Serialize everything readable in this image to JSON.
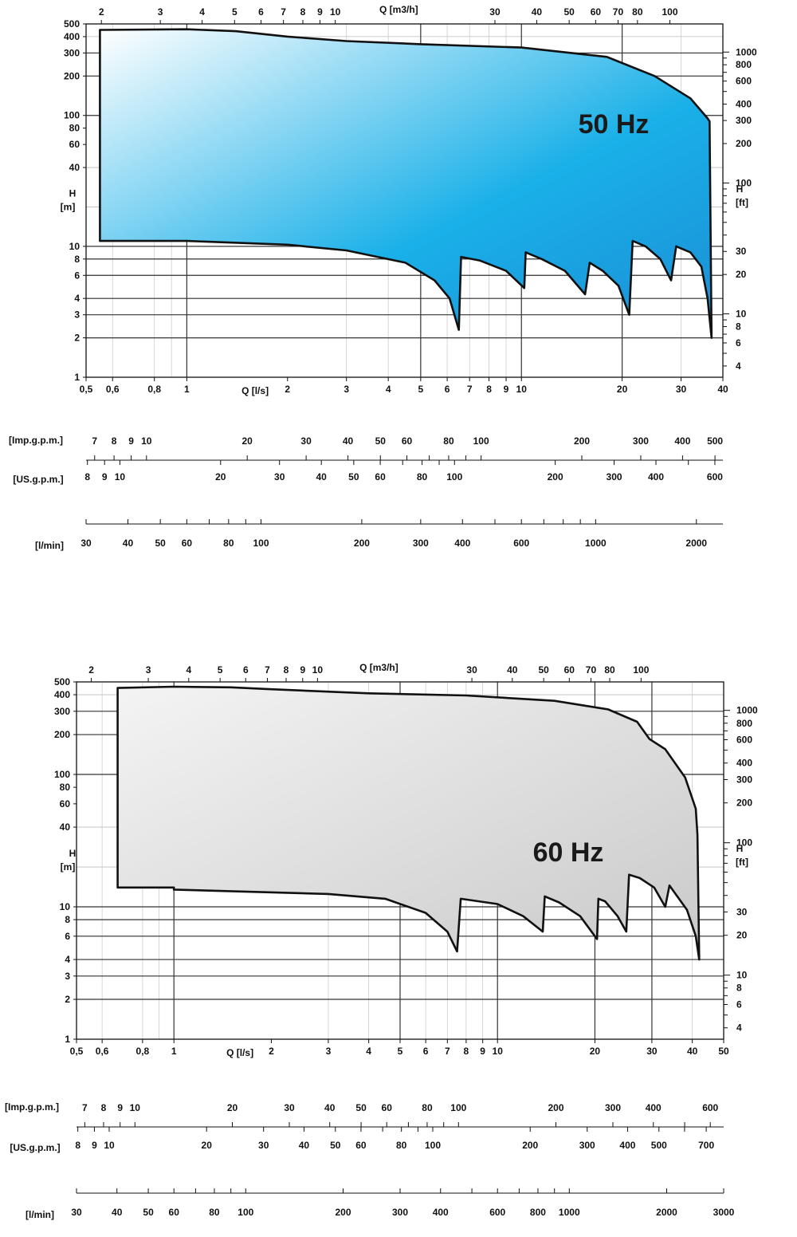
{
  "chart_data": [
    {
      "type": "area",
      "title": "",
      "label": "50 Hz",
      "fill_colors": [
        "#ffffff",
        "#1ab0e8",
        "#1a8ed6"
      ],
      "x_axis_bottom": {
        "label": "Q  [l/s]",
        "scale": "log",
        "range": [
          0.5,
          40
        ],
        "ticks": [
          "0,5",
          "0,6",
          "0,8",
          "1",
          "2",
          "3",
          "4",
          "5",
          "6",
          "7",
          "8",
          "9",
          "10",
          "20",
          "30",
          "40"
        ]
      },
      "x_axis_top": {
        "label": "Q [m3/h]",
        "scale": "log",
        "ticks": [
          "2",
          "3",
          "4",
          "5",
          "6",
          "7",
          "8",
          "9",
          "10",
          "30",
          "40",
          "50",
          "60",
          "70",
          "80",
          "100"
        ]
      },
      "y_axis_left": {
        "label": "H",
        "unit": "[m]",
        "scale": "log",
        "range": [
          1,
          500
        ],
        "ticks": [
          "1",
          "2",
          "3",
          "4",
          "6",
          "8",
          "10",
          "40",
          "60",
          "80",
          "100",
          "200",
          "300",
          "400",
          "500"
        ]
      },
      "y_axis_right": {
        "label": "H",
        "unit": "[ft]",
        "scale": "log",
        "ticks": [
          "4",
          "6",
          "8",
          "10",
          "20",
          "30",
          "100",
          "200",
          "300",
          "400",
          "600",
          "800",
          "1000"
        ]
      },
      "envelope": [
        {
          "q": 0.55,
          "h": 450
        },
        {
          "q": 1.0,
          "h": 455
        },
        {
          "q": 1.4,
          "h": 440
        },
        {
          "q": 2.0,
          "h": 400
        },
        {
          "q": 3.0,
          "h": 370
        },
        {
          "q": 5.0,
          "h": 350
        },
        {
          "q": 10.0,
          "h": 330
        },
        {
          "q": 18.0,
          "h": 280
        },
        {
          "q": 25.0,
          "h": 200
        },
        {
          "q": 32.0,
          "h": 135
        },
        {
          "q": 36.0,
          "h": 95
        },
        {
          "q": 36.5,
          "h": 90
        },
        {
          "q": 37.0,
          "h": 2.0
        },
        {
          "q": 36.0,
          "h": 4.0
        },
        {
          "q": 34.5,
          "h": 7.0
        },
        {
          "q": 32.0,
          "h": 9.0
        },
        {
          "q": 29.0,
          "h": 10.0
        },
        {
          "q": 28.0,
          "h": 5.5
        },
        {
          "q": 26.0,
          "h": 8.0
        },
        {
          "q": 23.5,
          "h": 10.0
        },
        {
          "q": 21.5,
          "h": 11.0
        },
        {
          "q": 21.0,
          "h": 3.0
        },
        {
          "q": 19.5,
          "h": 5.0
        },
        {
          "q": 17.5,
          "h": 6.5
        },
        {
          "q": 16.0,
          "h": 7.5
        },
        {
          "q": 15.5,
          "h": 4.3
        },
        {
          "q": 13.5,
          "h": 6.5
        },
        {
          "q": 11.5,
          "h": 8.0
        },
        {
          "q": 10.3,
          "h": 9.0
        },
        {
          "q": 10.2,
          "h": 4.8
        },
        {
          "q": 9.0,
          "h": 6.5
        },
        {
          "q": 7.5,
          "h": 7.8
        },
        {
          "q": 6.6,
          "h": 8.3
        },
        {
          "q": 6.5,
          "h": 2.3
        },
        {
          "q": 6.1,
          "h": 4.0
        },
        {
          "q": 5.5,
          "h": 5.5
        },
        {
          "q": 4.5,
          "h": 7.5
        },
        {
          "q": 3.0,
          "h": 9.3
        },
        {
          "q": 2.0,
          "h": 10.3
        },
        {
          "q": 1.0,
          "h": 11.0
        },
        {
          "q": 0.55,
          "h": 11.0
        }
      ]
    },
    {
      "type": "area",
      "title": "",
      "label": "60 Hz",
      "fill_colors": [
        "#f4f4f4",
        "#c9c9c9"
      ],
      "x_axis_bottom": {
        "label": "Q  [l/s]",
        "scale": "log",
        "range": [
          0.5,
          50
        ],
        "ticks": [
          "0,5",
          "0,6",
          "0,8",
          "1",
          "2",
          "3",
          "4",
          "5",
          "6",
          "7",
          "8",
          "9",
          "10",
          "20",
          "30",
          "40",
          "50"
        ]
      },
      "x_axis_top": {
        "label": "Q [m3/h]",
        "scale": "log",
        "ticks": [
          "2",
          "3",
          "4",
          "5",
          "6",
          "7",
          "8",
          "9",
          "10",
          "30",
          "40",
          "50",
          "60",
          "70",
          "80",
          "100"
        ]
      },
      "y_axis_left": {
        "label": "H",
        "unit": "[m]",
        "scale": "log",
        "range": [
          1,
          500
        ],
        "ticks": [
          "1",
          "2",
          "3",
          "4",
          "6",
          "8",
          "10",
          "40",
          "60",
          "80",
          "100",
          "200",
          "300",
          "400",
          "500"
        ]
      },
      "y_axis_right": {
        "label": "H",
        "unit": "[ft]",
        "scale": "log",
        "ticks": [
          "4",
          "6",
          "8",
          "10",
          "20",
          "30",
          "100",
          "200",
          "300",
          "400",
          "600",
          "800",
          "1000"
        ]
      },
      "envelope": [
        {
          "q": 0.67,
          "h": 450
        },
        {
          "q": 1.0,
          "h": 460
        },
        {
          "q": 1.5,
          "h": 455
        },
        {
          "q": 2.0,
          "h": 440
        },
        {
          "q": 4.0,
          "h": 410
        },
        {
          "q": 8.0,
          "h": 395
        },
        {
          "q": 15.0,
          "h": 360
        },
        {
          "q": 22.0,
          "h": 310
        },
        {
          "q": 27.0,
          "h": 250
        },
        {
          "q": 29.5,
          "h": 185
        },
        {
          "q": 33.0,
          "h": 155
        },
        {
          "q": 38.0,
          "h": 95
        },
        {
          "q": 41.0,
          "h": 55
        },
        {
          "q": 41.5,
          "h": 35
        },
        {
          "q": 42.0,
          "h": 4.0
        },
        {
          "q": 41.0,
          "h": 6.0
        },
        {
          "q": 38.5,
          "h": 9.5
        },
        {
          "q": 35.5,
          "h": 12.5
        },
        {
          "q": 34.0,
          "h": 14.5
        },
        {
          "q": 33.0,
          "h": 10.0
        },
        {
          "q": 30.5,
          "h": 14.0
        },
        {
          "q": 27.5,
          "h": 16.5
        },
        {
          "q": 25.5,
          "h": 17.5
        },
        {
          "q": 25.0,
          "h": 6.5
        },
        {
          "q": 23.5,
          "h": 8.5
        },
        {
          "q": 21.5,
          "h": 11.0
        },
        {
          "q": 20.5,
          "h": 11.5
        },
        {
          "q": 20.3,
          "h": 5.7
        },
        {
          "q": 18.0,
          "h": 8.5
        },
        {
          "q": 15.5,
          "h": 10.8
        },
        {
          "q": 14.0,
          "h": 12.0
        },
        {
          "q": 13.8,
          "h": 6.5
        },
        {
          "q": 12.0,
          "h": 8.5
        },
        {
          "q": 10.0,
          "h": 10.5
        },
        {
          "q": 7.7,
          "h": 11.5
        },
        {
          "q": 7.5,
          "h": 4.6
        },
        {
          "q": 7.0,
          "h": 6.5
        },
        {
          "q": 6.0,
          "h": 9.0
        },
        {
          "q": 4.5,
          "h": 11.5
        },
        {
          "q": 3.0,
          "h": 12.5
        },
        {
          "q": 1.0,
          "h": 13.5
        },
        {
          "q": 1.0,
          "h": 14.0
        },
        {
          "q": 0.67,
          "h": 14.0
        }
      ]
    }
  ],
  "scales": [
    {
      "imp": {
        "label": "[Imp.g.p.m.]",
        "ticks": [
          "7",
          "8",
          "9",
          "10",
          "20",
          "30",
          "40",
          "50",
          "60",
          "80",
          "100",
          "200",
          "300",
          "400",
          "500"
        ]
      },
      "us": {
        "label": "[US.g.p.m.]",
        "ticks": [
          "8",
          "9",
          "10",
          "20",
          "30",
          "40",
          "50",
          "60",
          "80",
          "100",
          "200",
          "300",
          "400",
          "600"
        ]
      },
      "lmin": {
        "label": "[l/min]",
        "ticks": [
          "30",
          "40",
          "50",
          "60",
          "80",
          "100",
          "200",
          "300",
          "400",
          "600",
          "1000",
          "2000"
        ]
      }
    },
    {
      "imp": {
        "label": "[Imp.g.p.m.]",
        "ticks": [
          "7",
          "8",
          "9",
          "10",
          "20",
          "30",
          "40",
          "50",
          "60",
          "80",
          "100",
          "200",
          "300",
          "400",
          "600"
        ]
      },
      "us": {
        "label": "[US.g.p.m.]",
        "ticks": [
          "8",
          "9",
          "10",
          "20",
          "30",
          "40",
          "50",
          "60",
          "80",
          "100",
          "200",
          "300",
          "400",
          "500",
          "700"
        ]
      },
      "lmin": {
        "label": "[l/min]",
        "ticks": [
          "30",
          "40",
          "50",
          "60",
          "80",
          "100",
          "200",
          "300",
          "400",
          "600",
          "800",
          "1000",
          "2000",
          "3000"
        ]
      }
    }
  ]
}
